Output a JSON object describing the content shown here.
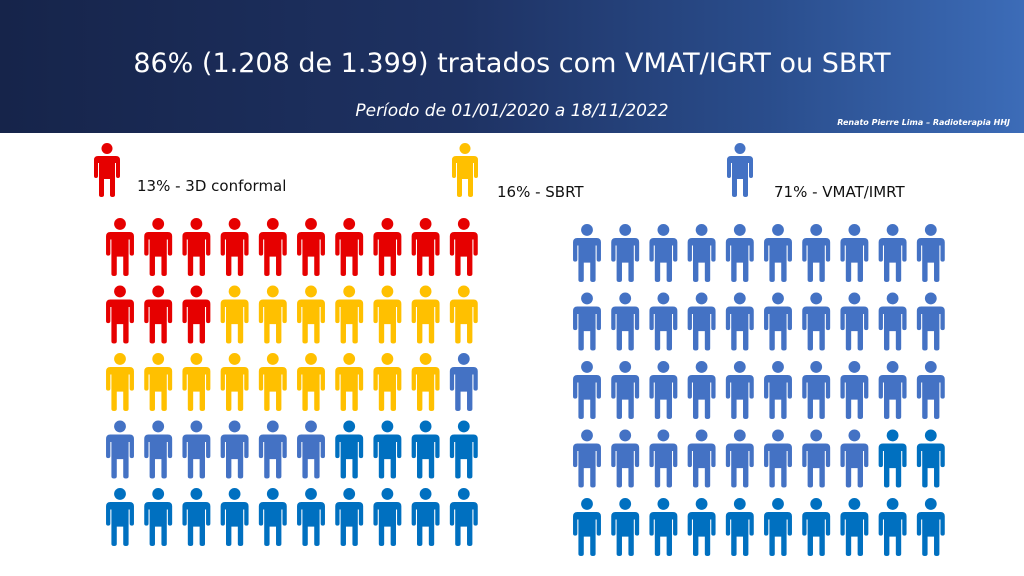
{
  "header": {
    "title": "86% (1.208 de 1.399) tratados com VMAT/IGRT ou SBRT",
    "subtitle": "Período de 01/01/2020 a 18/11/2022",
    "author": "Renato Pierre Lima – Radioterapia HHJ"
  },
  "colors": {
    "3d": "#e60000",
    "sbrt": "#ffc000",
    "vmat_light": "#4472c4",
    "vmat_dark": "#0070c0"
  },
  "chart_data": {
    "type": "table",
    "legend": [
      {
        "key": "3d",
        "label": "13% - 3D conformal",
        "value": 13
      },
      {
        "key": "sbrt",
        "label": "16% -  SBRT",
        "value": 16
      },
      {
        "key": "vmat",
        "label": "71% - VMAT/IMRT",
        "value": 71
      }
    ],
    "grids": [
      {
        "rows": 5,
        "cols": 10,
        "icons": [
          "3d",
          "3d",
          "3d",
          "3d",
          "3d",
          "3d",
          "3d",
          "3d",
          "3d",
          "3d",
          "3d",
          "3d",
          "3d",
          "sbrt",
          "sbrt",
          "sbrt",
          "sbrt",
          "sbrt",
          "sbrt",
          "sbrt",
          "sbrt",
          "sbrt",
          "sbrt",
          "sbrt",
          "sbrt",
          "sbrt",
          "sbrt",
          "sbrt",
          "sbrt",
          "vmat_light",
          "vmat_light",
          "vmat_light",
          "vmat_light",
          "vmat_light",
          "vmat_light",
          "vmat_light",
          "vmat_dark",
          "vmat_dark",
          "vmat_dark",
          "vmat_dark",
          "vmat_dark",
          "vmat_dark",
          "vmat_dark",
          "vmat_dark",
          "vmat_dark",
          "vmat_dark",
          "vmat_dark",
          "vmat_dark",
          "vmat_dark",
          "vmat_dark"
        ]
      },
      {
        "rows": 5,
        "cols": 10,
        "icons": [
          "vmat_light",
          "vmat_light",
          "vmat_light",
          "vmat_light",
          "vmat_light",
          "vmat_light",
          "vmat_light",
          "vmat_light",
          "vmat_light",
          "vmat_light",
          "vmat_light",
          "vmat_light",
          "vmat_light",
          "vmat_light",
          "vmat_light",
          "vmat_light",
          "vmat_light",
          "vmat_light",
          "vmat_light",
          "vmat_light",
          "vmat_light",
          "vmat_light",
          "vmat_light",
          "vmat_light",
          "vmat_light",
          "vmat_light",
          "vmat_light",
          "vmat_light",
          "vmat_light",
          "vmat_light",
          "vmat_light",
          "vmat_light",
          "vmat_light",
          "vmat_light",
          "vmat_light",
          "vmat_light",
          "vmat_light",
          "vmat_light",
          "vmat_dark",
          "vmat_dark",
          "vmat_dark",
          "vmat_dark",
          "vmat_dark",
          "vmat_dark",
          "vmat_dark",
          "vmat_dark",
          "vmat_dark",
          "vmat_dark",
          "vmat_dark",
          "vmat_dark"
        ]
      }
    ]
  }
}
